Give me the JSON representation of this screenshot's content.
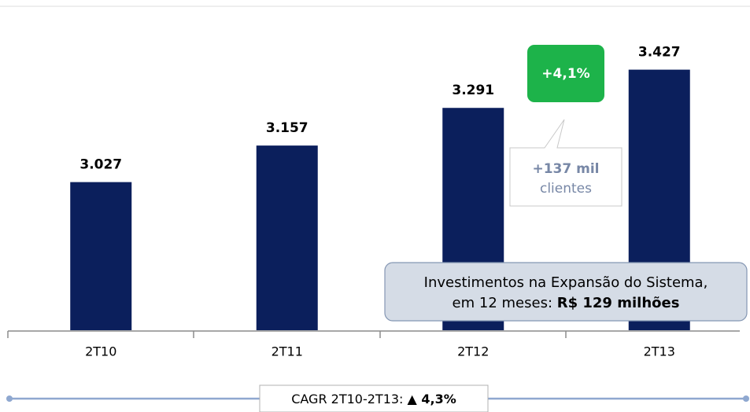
{
  "chart_data": {
    "type": "bar",
    "categories": [
      "2T10",
      "2T11",
      "2T12",
      "2T13"
    ],
    "values": [
      3027,
      3157,
      3291,
      3427
    ],
    "value_labels": [
      "3.027",
      "3.157",
      "3.291",
      "3.427"
    ],
    "color": "#0b1f5c",
    "ylim": [
      2500,
      3500
    ],
    "annotations": {
      "growth": "+4,1%",
      "increase": "+137 mil",
      "increase_unit": "clientes",
      "investment_line1": "Investimentos na Expansão do Sistema,",
      "investment_line2": "em 12 meses: ",
      "investment_amount": "R$ 129 milhões",
      "cagr_label": "CAGR 2T10-2T13: ",
      "cagr_value": "▲ 4,3%"
    }
  }
}
